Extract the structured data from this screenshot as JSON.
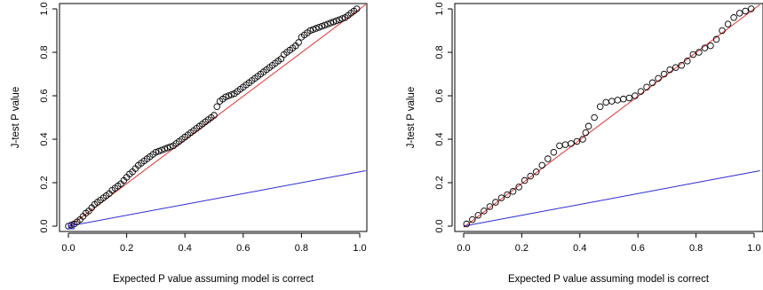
{
  "chart_data": [
    {
      "type": "scatter",
      "xlabel": "Expected P value assuming model is correct",
      "ylabel": "J-test P value",
      "xlim": [
        0,
        1
      ],
      "ylim": [
        0,
        1
      ],
      "x_ticks": [
        "0.0",
        "0.2",
        "0.4",
        "0.6",
        "0.8",
        "1.0"
      ],
      "y_ticks": [
        "0.0",
        "0.2",
        "0.4",
        "0.6",
        "0.8",
        "1.0"
      ],
      "grid": false,
      "series": [
        {
          "kind": "points",
          "marker": "open-circle",
          "color": "#000000",
          "x": [
            0.0,
            0.01,
            0.02,
            0.03,
            0.04,
            0.05,
            0.06,
            0.07,
            0.08,
            0.09,
            0.1,
            0.11,
            0.12,
            0.13,
            0.14,
            0.15,
            0.16,
            0.17,
            0.18,
            0.19,
            0.2,
            0.21,
            0.22,
            0.23,
            0.24,
            0.25,
            0.26,
            0.27,
            0.28,
            0.29,
            0.3,
            0.31,
            0.32,
            0.33,
            0.34,
            0.35,
            0.36,
            0.37,
            0.38,
            0.39,
            0.4,
            0.41,
            0.42,
            0.43,
            0.44,
            0.45,
            0.46,
            0.47,
            0.48,
            0.49,
            0.5,
            0.51,
            0.52,
            0.53,
            0.54,
            0.55,
            0.56,
            0.57,
            0.58,
            0.59,
            0.6,
            0.61,
            0.62,
            0.63,
            0.64,
            0.65,
            0.66,
            0.67,
            0.68,
            0.69,
            0.7,
            0.71,
            0.72,
            0.73,
            0.74,
            0.75,
            0.76,
            0.77,
            0.78,
            0.79,
            0.8,
            0.81,
            0.82,
            0.83,
            0.84,
            0.85,
            0.86,
            0.87,
            0.88,
            0.89,
            0.9,
            0.91,
            0.92,
            0.93,
            0.94,
            0.95,
            0.96,
            0.97,
            0.98,
            0.99
          ],
          "y": [
            0.0,
            0.005,
            0.01,
            0.02,
            0.03,
            0.045,
            0.06,
            0.07,
            0.085,
            0.1,
            0.11,
            0.12,
            0.13,
            0.14,
            0.15,
            0.165,
            0.175,
            0.185,
            0.195,
            0.21,
            0.225,
            0.24,
            0.25,
            0.265,
            0.28,
            0.29,
            0.3,
            0.31,
            0.32,
            0.33,
            0.34,
            0.345,
            0.35,
            0.355,
            0.36,
            0.365,
            0.37,
            0.38,
            0.39,
            0.4,
            0.41,
            0.42,
            0.43,
            0.44,
            0.45,
            0.46,
            0.47,
            0.48,
            0.49,
            0.5,
            0.51,
            0.55,
            0.575,
            0.585,
            0.595,
            0.6,
            0.605,
            0.61,
            0.62,
            0.63,
            0.64,
            0.65,
            0.66,
            0.67,
            0.68,
            0.69,
            0.7,
            0.71,
            0.72,
            0.73,
            0.74,
            0.75,
            0.76,
            0.77,
            0.79,
            0.8,
            0.81,
            0.82,
            0.83,
            0.845,
            0.87,
            0.88,
            0.89,
            0.9,
            0.905,
            0.91,
            0.915,
            0.92,
            0.925,
            0.93,
            0.935,
            0.94,
            0.945,
            0.95,
            0.955,
            0.96,
            0.97,
            0.98,
            0.99,
            1.0
          ]
        },
        {
          "kind": "line",
          "color": "#e8322f",
          "x": [
            0,
            1.02
          ],
          "y": [
            -0.005,
            1.02
          ]
        },
        {
          "kind": "line",
          "color": "#2a2ad6",
          "x": [
            0,
            1.02
          ],
          "y": [
            0.0,
            0.255
          ]
        }
      ],
      "annotations": [
        {
          "kind": "point",
          "marker": "open-square",
          "color": "#2a2ad6",
          "x": 0.01,
          "y": 0.0
        }
      ]
    },
    {
      "type": "scatter",
      "xlabel": "Expected P value assuming model is correct",
      "ylabel": "J-test P value",
      "xlim": [
        0,
        1
      ],
      "ylim": [
        0,
        1
      ],
      "x_ticks": [
        "0.0",
        "0.2",
        "0.4",
        "0.6",
        "0.8",
        "1.0"
      ],
      "y_ticks": [
        "0.0",
        "0.2",
        "0.4",
        "0.6",
        "0.8",
        "1.0"
      ],
      "grid": false,
      "series": [
        {
          "kind": "points",
          "marker": "open-circle",
          "color": "#000000",
          "x": [
            0.01,
            0.03,
            0.05,
            0.07,
            0.09,
            0.11,
            0.13,
            0.15,
            0.17,
            0.19,
            0.21,
            0.23,
            0.25,
            0.27,
            0.29,
            0.31,
            0.33,
            0.35,
            0.37,
            0.39,
            0.41,
            0.42,
            0.43,
            0.45,
            0.47,
            0.49,
            0.51,
            0.53,
            0.55,
            0.57,
            0.59,
            0.61,
            0.63,
            0.65,
            0.67,
            0.69,
            0.71,
            0.73,
            0.75,
            0.77,
            0.79,
            0.81,
            0.83,
            0.85,
            0.87,
            0.89,
            0.91,
            0.93,
            0.95,
            0.97,
            0.99
          ],
          "y": [
            0.01,
            0.03,
            0.05,
            0.07,
            0.09,
            0.11,
            0.13,
            0.145,
            0.16,
            0.18,
            0.21,
            0.23,
            0.25,
            0.28,
            0.31,
            0.34,
            0.37,
            0.375,
            0.38,
            0.39,
            0.4,
            0.43,
            0.46,
            0.5,
            0.55,
            0.57,
            0.575,
            0.58,
            0.585,
            0.59,
            0.6,
            0.62,
            0.64,
            0.66,
            0.68,
            0.7,
            0.72,
            0.73,
            0.74,
            0.76,
            0.79,
            0.8,
            0.82,
            0.83,
            0.86,
            0.9,
            0.93,
            0.96,
            0.98,
            0.99,
            1.0
          ]
        },
        {
          "kind": "line",
          "color": "#e8322f",
          "x": [
            0,
            1.02
          ],
          "y": [
            -0.005,
            1.02
          ]
        },
        {
          "kind": "line",
          "color": "#2a2ad6",
          "x": [
            0,
            1.02
          ],
          "y": [
            0.0,
            0.255
          ]
        }
      ]
    }
  ]
}
